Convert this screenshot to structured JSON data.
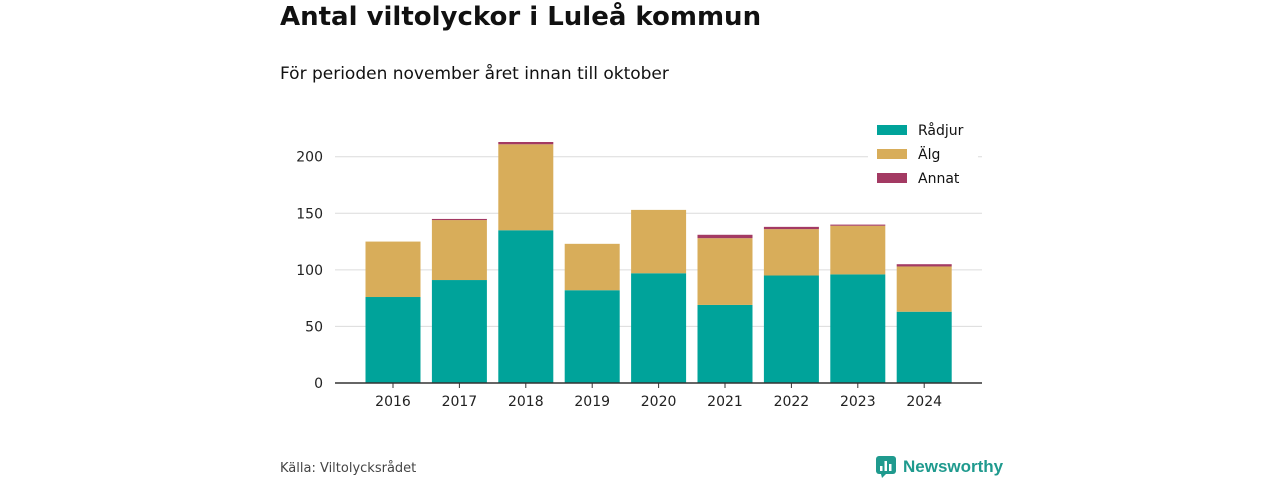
{
  "title": "Antal viltolyckor i Luleå kommun",
  "subtitle": "För perioden november året innan till oktober",
  "source": "Källa: Viltolycksrådet",
  "brand": {
    "name": "Newsworthy",
    "icon": "newsworthy-logo-icon",
    "color": "#1f9a8e"
  },
  "chart_data": {
    "type": "bar",
    "stacked": true,
    "categories": [
      "2016",
      "2017",
      "2018",
      "2019",
      "2020",
      "2021",
      "2022",
      "2023",
      "2024"
    ],
    "series": [
      {
        "name": "Rådjur",
        "color": "#00a39a",
        "values": [
          76,
          91,
          135,
          82,
          97,
          69,
          95,
          96,
          63
        ]
      },
      {
        "name": "Älg",
        "color": "#d8ad5a",
        "values": [
          49,
          53,
          76,
          41,
          56,
          59,
          41,
          43,
          40
        ]
      },
      {
        "name": "Annat",
        "color": "#a33a63",
        "values": [
          0,
          1,
          2,
          0,
          0,
          3,
          2,
          1,
          2
        ]
      }
    ],
    "ylim": [
      0,
      213
    ],
    "yticks": [
      0,
      50,
      100,
      150,
      200
    ],
    "grid": true,
    "legend": "top-right",
    "xlabel": "",
    "ylabel": ""
  }
}
